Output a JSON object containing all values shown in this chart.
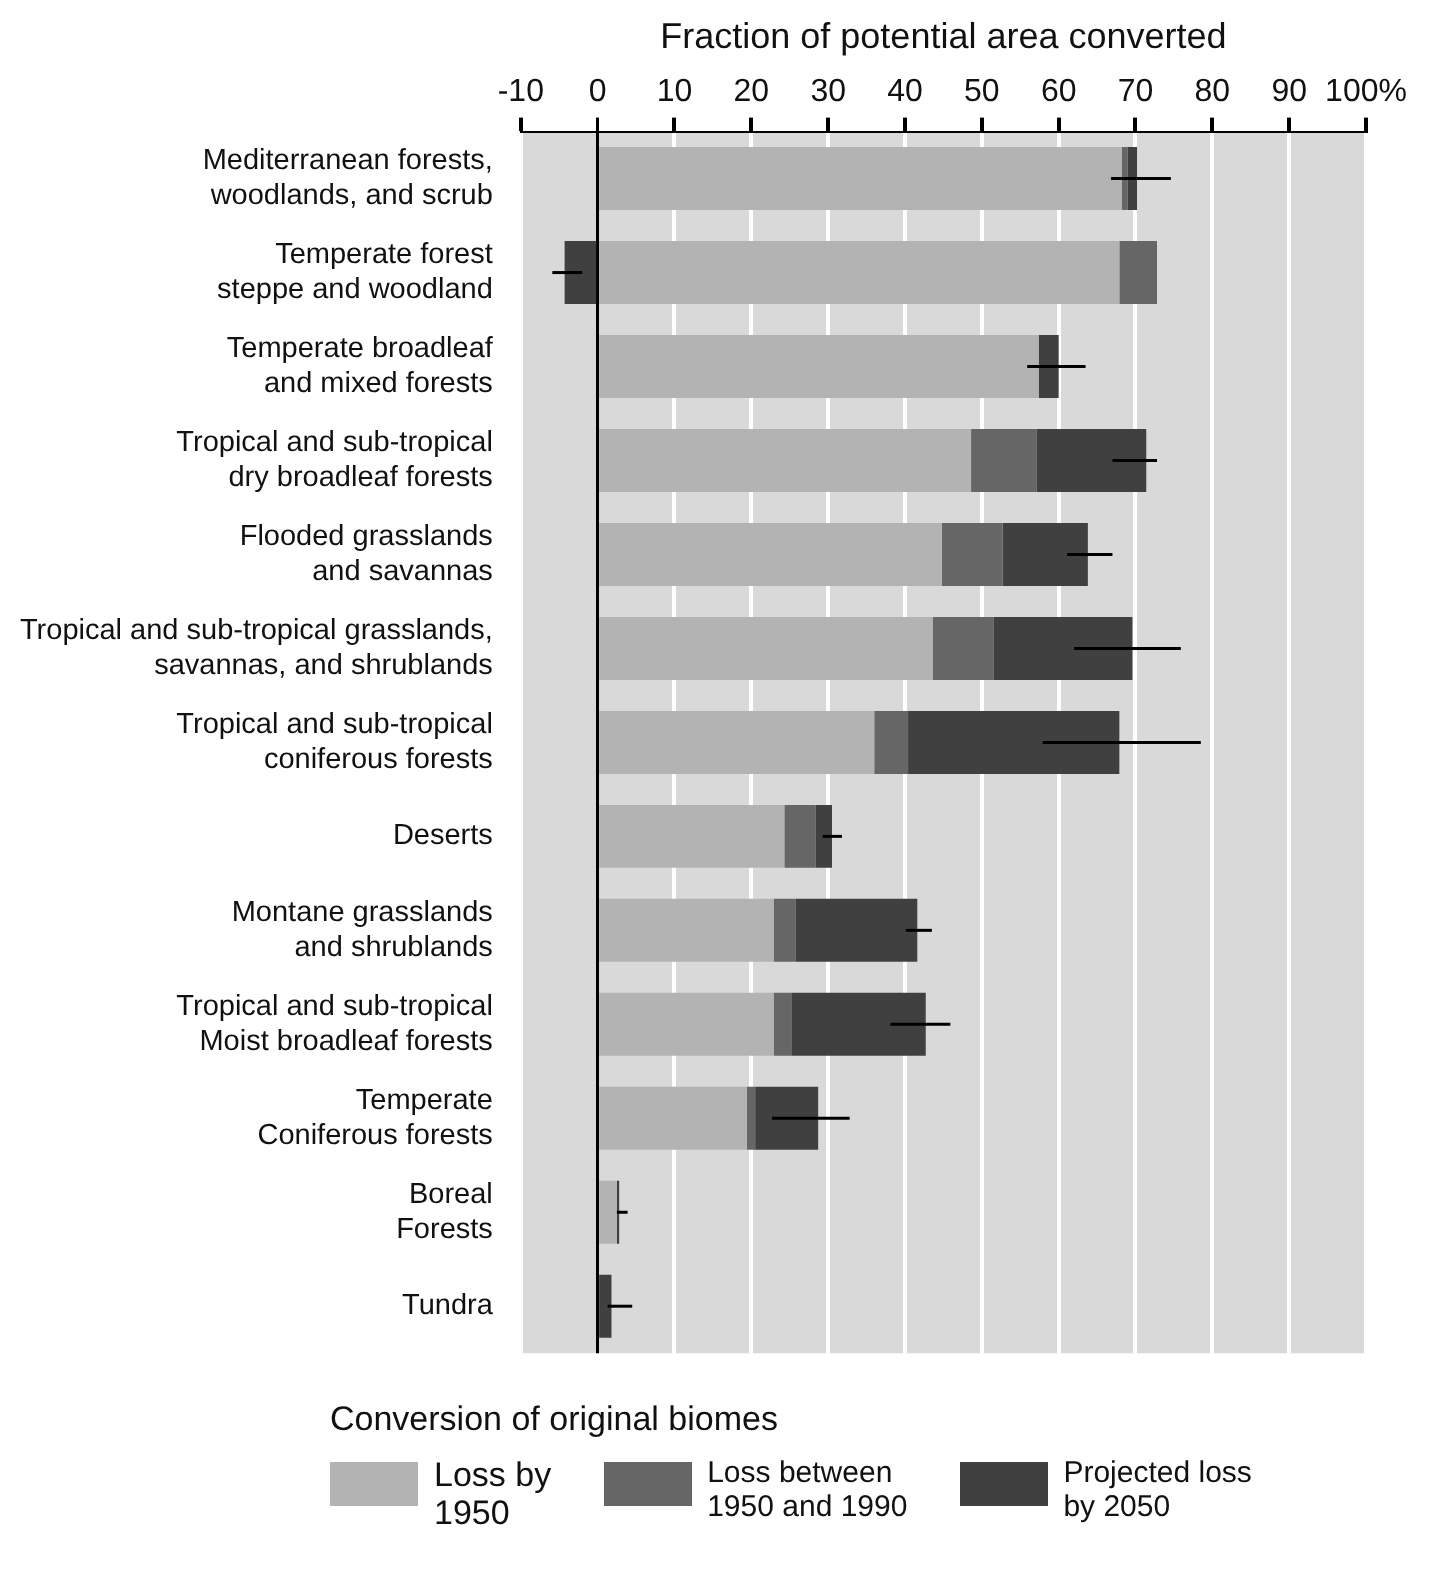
{
  "chart_data": {
    "type": "bar",
    "orientation": "horizontal",
    "stacked": true,
    "xlabel": "Fraction of potential area converted",
    "legend_title": "Conversion of original biomes",
    "legend": "bottom",
    "grid": "x",
    "categories": [
      "Mediterranean forests,\nwoodlands, and scrub",
      "Temperate forest\nsteppe and woodland",
      "Temperate broadleaf\nand mixed forests",
      "Tropical and sub-tropical\ndry broadleaf forests",
      "Flooded grasslands\nand savannas",
      "Tropical and sub-tropical grasslands,\nsavannas, and shrublands",
      "Tropical and sub-tropical\nconiferous forests",
      "Deserts",
      "Montane grasslands\nand shrublands",
      "Tropical and sub-tropical\nMoist broadleaf forests",
      "Temperate\nConiferous forests",
      "Boreal\nForests",
      "Tundra"
    ],
    "xlim": [
      -10,
      100
    ],
    "xticks": [
      -10,
      0,
      10,
      20,
      30,
      40,
      50,
      60,
      70,
      80,
      90,
      {
        "value": 100,
        "label": "100%"
      }
    ],
    "series": [
      {
        "name": "Loss by\n1950",
        "color": "#b3b3b3",
        "values": [
          68.2,
          67.9,
          57.4,
          48.6,
          44.8,
          43.6,
          36.0,
          24.3,
          22.9,
          22.9,
          19.4,
          2.5,
          0
        ]
      },
      {
        "name": "Loss between\n1950 and 1990",
        "color": "#666666",
        "values": [
          0.8,
          4.9,
          0,
          8.5,
          7.9,
          7.9,
          4.4,
          4.1,
          2.9,
          2.3,
          1.1,
          0,
          0
        ]
      },
      {
        "name": "Projected loss\nby 2050",
        "color": "#404040",
        "values": [
          1.2,
          -4.3,
          2.6,
          14.3,
          11.1,
          18.1,
          27.5,
          2.1,
          15.8,
          17.5,
          8.2,
          0.3,
          1.8
        ],
        "errors": [
          [
            66.8,
            74.6
          ],
          [
            -5.9,
            -2.0
          ],
          [
            55.9,
            63.5
          ],
          [
            67.0,
            72.8
          ],
          [
            61.1,
            67.0
          ],
          [
            62.0,
            75.9
          ],
          [
            57.9,
            78.5
          ],
          [
            29.3,
            31.8
          ],
          [
            40.1,
            43.5
          ],
          [
            38.1,
            45.9
          ],
          [
            22.7,
            32.8
          ],
          [
            2.5,
            3.9
          ],
          [
            1.3,
            4.5
          ]
        ]
      }
    ]
  }
}
